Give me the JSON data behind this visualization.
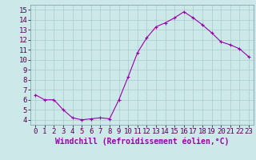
{
  "x": [
    0,
    1,
    2,
    3,
    4,
    5,
    6,
    7,
    8,
    9,
    10,
    11,
    12,
    13,
    14,
    15,
    16,
    17,
    18,
    19,
    20,
    21,
    22,
    23
  ],
  "y": [
    6.5,
    6.0,
    6.0,
    5.0,
    4.2,
    4.0,
    4.1,
    4.2,
    4.1,
    6.0,
    8.3,
    10.7,
    12.2,
    13.3,
    13.7,
    14.2,
    14.8,
    14.2,
    13.5,
    12.7,
    11.8,
    11.5,
    11.1,
    10.3
  ],
  "line_color": "#9900aa",
  "marker": "+",
  "marker_size": 3,
  "bg_color": "#cce8e8",
  "grid_color": "#aacccc",
  "xlabel": "Windchill (Refroidissement éolien,°C)",
  "ylim": [
    3.5,
    15.5
  ],
  "xlim": [
    -0.5,
    23.5
  ],
  "yticks": [
    4,
    5,
    6,
    7,
    8,
    9,
    10,
    11,
    12,
    13,
    14,
    15
  ],
  "xtick_labels": [
    "0",
    "1",
    "2",
    "3",
    "4",
    "5",
    "6",
    "7",
    "8",
    "9",
    "10",
    "11",
    "12",
    "13",
    "14",
    "15",
    "16",
    "17",
    "18",
    "19",
    "20",
    "21",
    "22",
    "23"
  ],
  "xlabel_fontsize": 7,
  "tick_fontsize": 6.5,
  "line_width": 0.8
}
